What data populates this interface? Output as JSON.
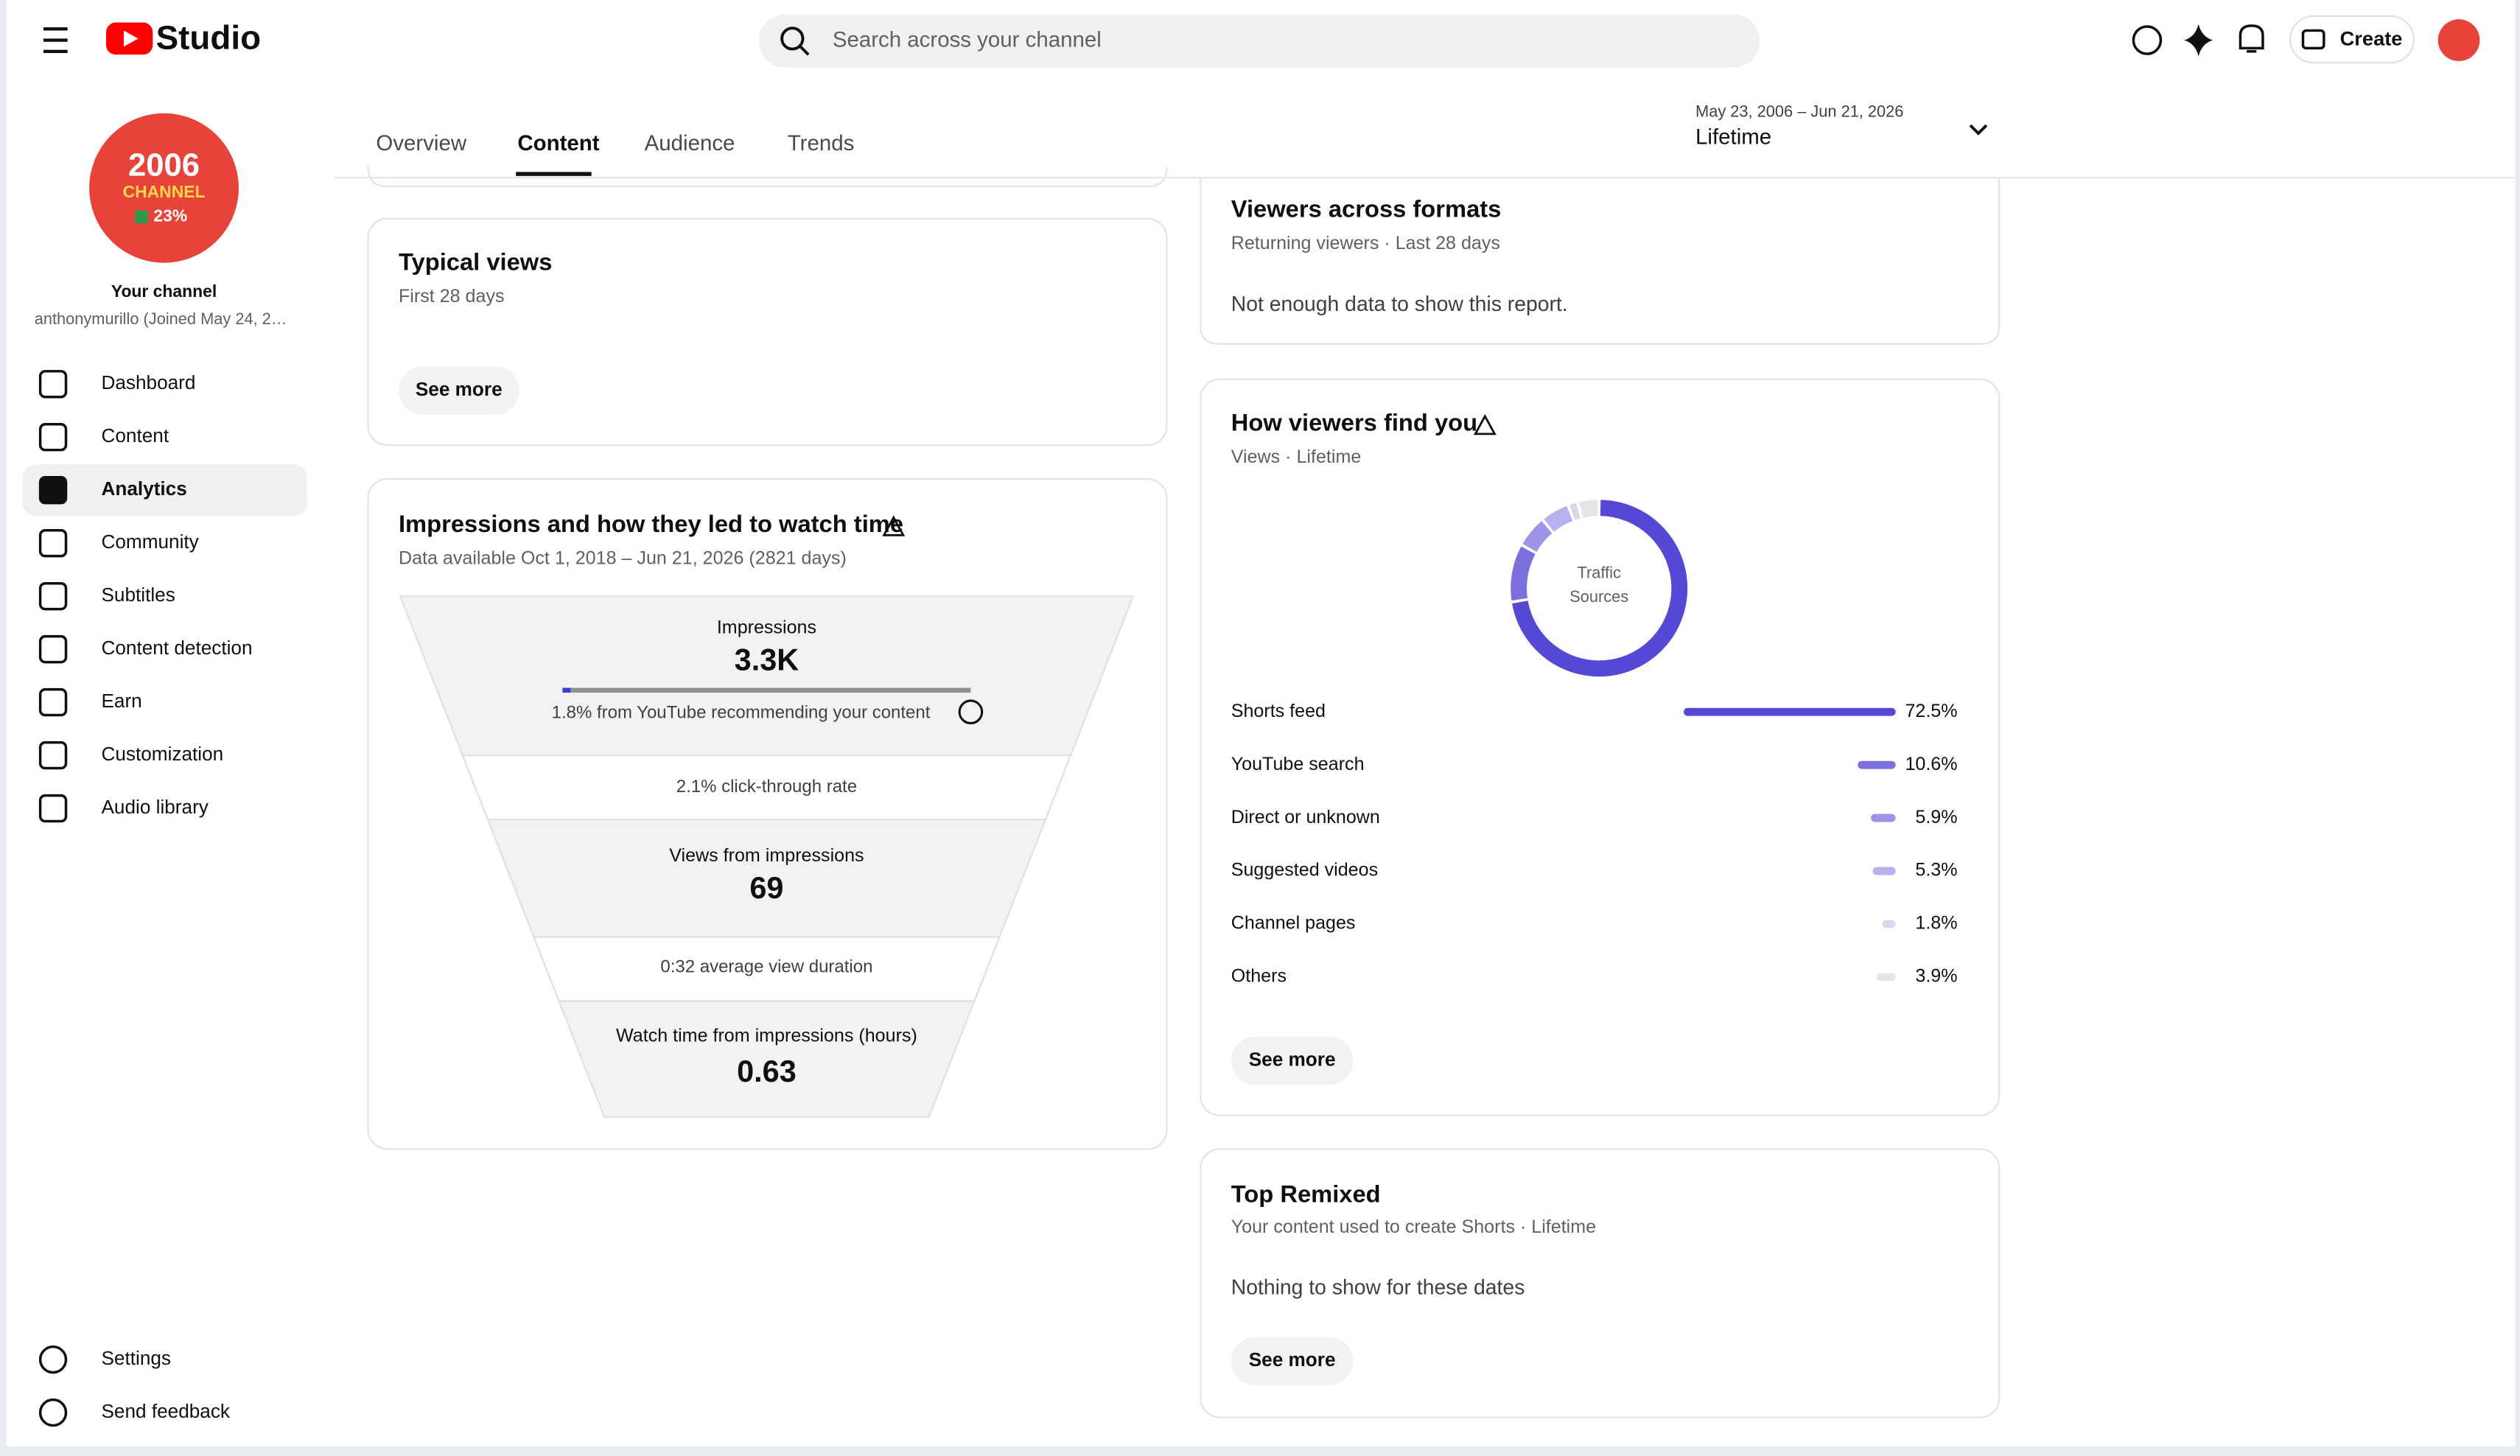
{
  "header": {
    "logo": "Studio",
    "search_placeholder": "Search across your channel",
    "create": "Create"
  },
  "sidebar": {
    "avatar": {
      "line1": "2006",
      "line2": "CHANNEL",
      "line3": "23%"
    },
    "channel_label": "Your channel",
    "channel_handle": "anthonymurillo (Joined May 24, 2…",
    "nav": [
      "Dashboard",
      "Content",
      "Analytics",
      "Community",
      "Subtitles",
      "Content detection",
      "Earn",
      "Customization",
      "Audio library"
    ],
    "footer": [
      "Settings",
      "Send feedback"
    ]
  },
  "tabs": [
    "Overview",
    "Content",
    "Audience",
    "Trends"
  ],
  "date_range": {
    "range": "May 23, 2006 – Jun 21, 2026",
    "label": "Lifetime"
  },
  "typical_views": {
    "title": "Typical views",
    "subtitle": "First 28 days",
    "button": "See more"
  },
  "impressions": {
    "title": "Impressions and how they led to watch time",
    "subtitle": "Data available Oct 1, 2018 – Jun 21, 2026 (2821 days)",
    "funnel": [
      {
        "label": "Impressions",
        "value": "3.3K",
        "note": "1.8% from YouTube recommending your content"
      },
      {
        "label": "2.1% click-through rate"
      },
      {
        "label": "Views from impressions",
        "value": "69"
      },
      {
        "label": "0:32 average view duration"
      },
      {
        "label": "Watch time from impressions (hours)",
        "value": "0.63"
      }
    ]
  },
  "viewers_across_formats": {
    "title": "Viewers across formats",
    "subtitle": "Returning viewers · Last 28 days",
    "message": "Not enough data to show this report."
  },
  "traffic": {
    "title": "How viewers find you",
    "subtitle": "Views · Lifetime",
    "center_label": [
      "Traffic",
      "Sources"
    ],
    "sources": [
      {
        "name": "Shorts feed",
        "value": 72.5,
        "label": "72.5%",
        "color": "#5548d4"
      },
      {
        "name": "YouTube search",
        "value": 10.6,
        "label": "10.6%",
        "color": "#7a6fdd"
      },
      {
        "name": "Direct or unknown",
        "value": 5.9,
        "label": "5.9%",
        "color": "#9c94e6"
      },
      {
        "name": "Suggested videos",
        "value": 5.3,
        "label": "5.3%",
        "color": "#b7b1ee"
      },
      {
        "name": "Channel pages",
        "value": 1.8,
        "label": "1.8%",
        "color": "#d9d7ec"
      },
      {
        "name": "Others",
        "value": 3.9,
        "label": "3.9%",
        "color": "#e6e6e6"
      }
    ],
    "button": "See more"
  },
  "top_remixed": {
    "title": "Top Remixed",
    "subtitle": "Your content used to create Shorts · Lifetime",
    "message": "Nothing to show for these dates",
    "button": "See more"
  }
}
